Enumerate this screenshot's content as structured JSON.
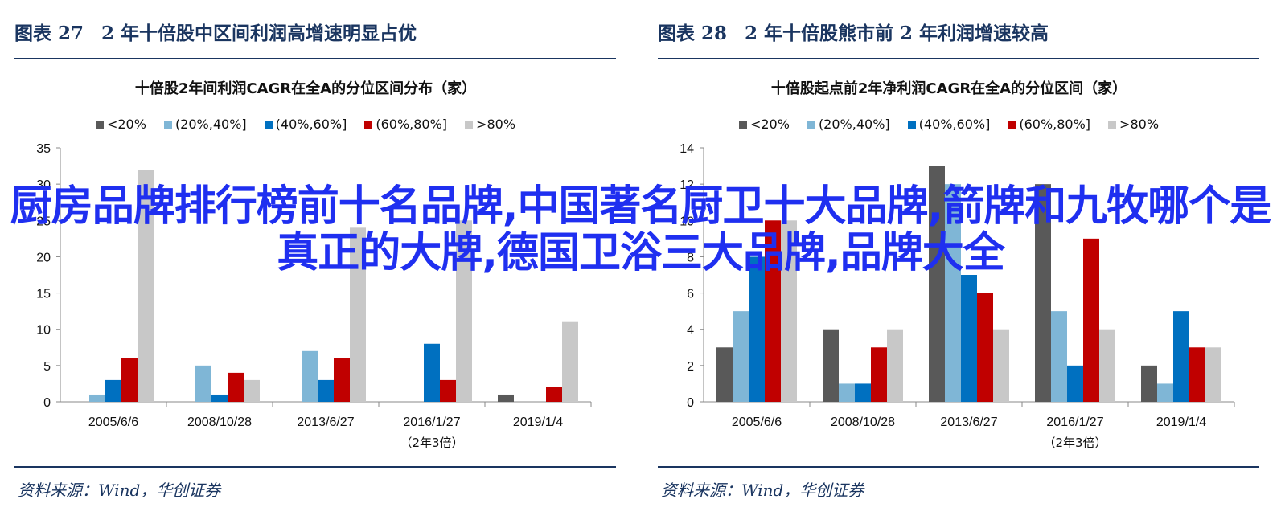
{
  "series_names": [
    "<20%",
    "(20%,40%]",
    "(40%,60%]",
    "(60%,80%]",
    ">80%"
  ],
  "series_colors": [
    "#595959",
    "#7fb6d6",
    "#0070c0",
    "#c00000",
    "#c8c8c8"
  ],
  "panels": [
    {
      "fig_label": "图表 27",
      "fig_title": "2 年十倍股中区间利润高增速明显占优",
      "source": "资料来源：Wind，华创证券"
    },
    {
      "fig_label": "图表 28",
      "fig_title": "2 年十倍股熊市前 2 年利润增速较高",
      "source": "资料来源：Wind，华创证券"
    }
  ],
  "chart_data": [
    {
      "type": "bar",
      "title": "十倍股2年间利润CAGR在全A的分位区间分布（家）",
      "categories": [
        "2005/6/6",
        "2008/10/28",
        "2013/6/27",
        "2016/1/27",
        "2019/1/4"
      ],
      "category_sublabels": [
        "",
        "",
        "",
        "（2年3倍）",
        ""
      ],
      "ylim": [
        0,
        35
      ],
      "yticks": [
        0,
        5,
        10,
        15,
        20,
        25,
        30,
        35
      ],
      "series": [
        {
          "name": "<20%",
          "values": [
            0,
            0,
            0,
            0,
            1
          ]
        },
        {
          "name": "(20%,40%]",
          "values": [
            1,
            5,
            7,
            0,
            0
          ]
        },
        {
          "name": "(40%,60%]",
          "values": [
            3,
            1,
            3,
            8,
            0
          ]
        },
        {
          "name": "(60%,80%]",
          "values": [
            6,
            4,
            6,
            3,
            2
          ]
        },
        {
          "name": ">80%",
          "values": [
            32,
            3,
            24,
            25,
            11
          ]
        }
      ],
      "legend": "top"
    },
    {
      "type": "bar",
      "title": "十倍股起点前2年净利润CAGR在全A的分位区间（家）",
      "categories": [
        "2005/6/6",
        "2008/10/28",
        "2013/6/27",
        "2016/1/27",
        "2019/1/4"
      ],
      "category_sublabels": [
        "",
        "",
        "",
        "（2年3倍）",
        ""
      ],
      "ylim": [
        0,
        14
      ],
      "yticks": [
        0,
        2,
        4,
        6,
        8,
        10,
        12,
        14
      ],
      "series": [
        {
          "name": "<20%",
          "values": [
            3,
            4,
            13,
            12,
            2
          ]
        },
        {
          "name": "(20%,40%]",
          "values": [
            5,
            1,
            12,
            5,
            1
          ]
        },
        {
          "name": "(40%,60%]",
          "values": [
            8,
            1,
            7,
            2,
            5
          ]
        },
        {
          "name": "(60%,80%]",
          "values": [
            10,
            3,
            6,
            9,
            3
          ]
        },
        {
          "name": ">80%",
          "values": [
            10,
            4,
            4,
            4,
            3
          ]
        }
      ],
      "legend": "top"
    }
  ],
  "overlay_text": "厨房品牌排行榜前十名品牌,中国著名厨卫十大品牌,箭牌和九牧哪个是真正的大牌,德国卫浴三大品牌,品牌大全"
}
